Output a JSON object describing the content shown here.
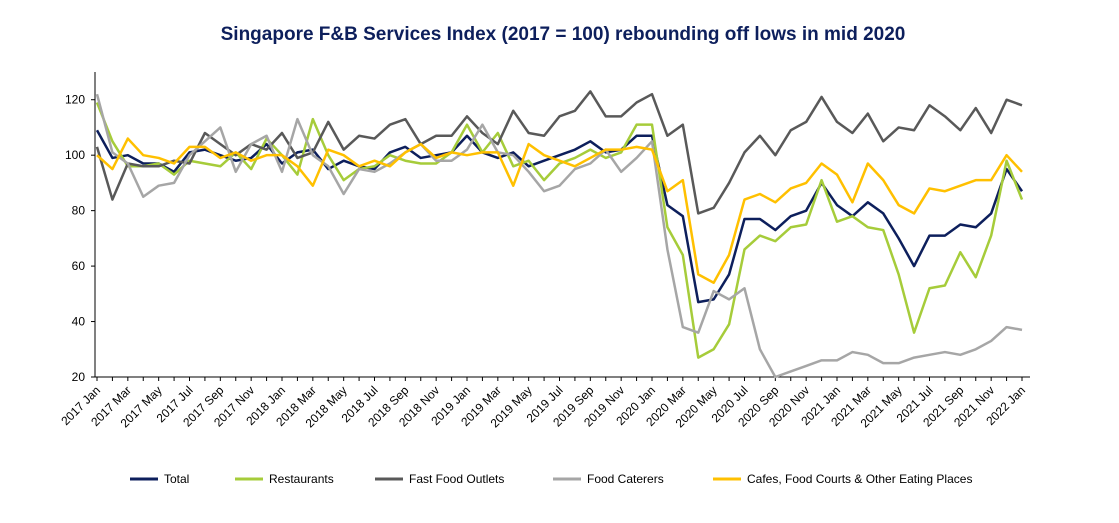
{
  "chart_data": {
    "type": "line",
    "title": "Singapore F&B Services Index (2017 = 100) rebounding off lows in mid 2020",
    "categories": [
      "2017 Jan",
      null,
      "2017 Mar",
      null,
      "2017 May",
      null,
      "2017 Jul",
      null,
      "2017 Sep",
      null,
      "2017 Nov",
      null,
      "2018 Jan",
      null,
      "2018 Mar",
      null,
      "2018 May",
      null,
      "2018 Jul",
      null,
      "2018 Sep",
      null,
      "2018 Nov",
      null,
      "2019 Jan",
      null,
      "2019 Mar",
      null,
      "2019 May",
      null,
      "2019 Jul",
      null,
      "2019 Sep",
      null,
      "2019 Nov",
      null,
      "2020 Jan",
      null,
      "2020 Mar",
      null,
      "2020 May",
      null,
      "2020 Jul",
      null,
      "2020 Sep",
      null,
      "2020 Nov",
      null,
      "2021 Jan",
      null,
      "2021 Mar",
      null,
      "2021 May",
      null,
      "2021 Jul",
      null,
      "2021 Sep",
      null,
      "2021 Nov",
      null,
      "2022 Jan"
    ],
    "series": [
      {
        "name": "Total",
        "color": "#0d1f5c",
        "values": [
          109,
          99,
          100,
          97,
          97,
          94,
          101,
          102,
          100,
          98,
          99,
          104,
          97,
          101,
          102,
          95,
          98,
          96,
          95,
          101,
          103,
          99,
          100,
          101,
          107,
          101,
          99,
          101,
          96,
          98,
          100,
          102,
          105,
          101,
          102,
          107,
          107,
          82,
          78,
          47,
          48,
          57,
          77,
          77,
          73,
          78,
          80,
          90,
          82,
          78,
          83,
          79,
          70,
          60,
          71,
          71,
          75,
          74,
          79,
          95,
          87
        ]
      },
      {
        "name": "Restaurants",
        "color": "#a6cc3a",
        "values": [
          119,
          105,
          96,
          96,
          97,
          93,
          98,
          97,
          96,
          101,
          95,
          106,
          100,
          93,
          113,
          100,
          91,
          95,
          96,
          100,
          98,
          97,
          97,
          101,
          111,
          101,
          108,
          96,
          98,
          91,
          97,
          99,
          102,
          99,
          101,
          111,
          111,
          74,
          64,
          27,
          30,
          39,
          66,
          71,
          69,
          74,
          75,
          91,
          76,
          78,
          74,
          73,
          57,
          36,
          52,
          53,
          65,
          56,
          71,
          98,
          84
        ]
      },
      {
        "name": "Fast Food Outlets",
        "color": "#595959",
        "values": [
          103,
          84,
          97,
          96,
          96,
          98,
          97,
          108,
          104,
          100,
          104,
          102,
          108,
          99,
          101,
          112,
          102,
          107,
          106,
          111,
          113,
          104,
          107,
          107,
          114,
          108,
          104,
          116,
          108,
          107,
          114,
          116,
          123,
          114,
          114,
          119,
          122,
          107,
          111,
          79,
          81,
          90,
          101,
          107,
          100,
          109,
          112,
          121,
          112,
          108,
          115,
          105,
          110,
          109,
          118,
          114,
          109,
          117,
          108,
          120,
          118
        ]
      },
      {
        "name": "Food Caterers",
        "color": "#a6a6a6",
        "values": [
          122,
          101,
          97,
          85,
          89,
          90,
          100,
          105,
          110,
          94,
          104,
          107,
          94,
          113,
          100,
          96,
          86,
          95,
          94,
          97,
          101,
          104,
          98,
          98,
          102,
          111,
          101,
          100,
          94,
          87,
          89,
          95,
          97,
          102,
          94,
          99,
          105,
          66,
          38,
          36,
          51,
          48,
          52,
          30,
          20,
          22,
          24,
          26,
          26,
          29,
          28,
          25,
          25,
          27,
          28,
          29,
          28,
          30,
          33,
          38,
          37
        ]
      },
      {
        "name": "Cafes, Food Courts & Other Eating Places",
        "color": "#ffc000",
        "values": [
          100,
          95,
          106,
          100,
          99,
          97,
          103,
          103,
          99,
          101,
          98,
          100,
          100,
          96,
          89,
          102,
          100,
          96,
          98,
          96,
          101,
          104,
          99,
          101,
          100,
          101,
          101,
          89,
          104,
          100,
          98,
          96,
          99,
          102,
          102,
          103,
          102,
          87,
          91,
          57,
          54,
          64,
          84,
          86,
          83,
          88,
          90,
          97,
          93,
          83,
          97,
          91,
          82,
          79,
          88,
          87,
          89,
          91,
          91,
          100,
          94
        ]
      }
    ],
    "ylim": [
      20,
      130
    ],
    "yticks": [
      20,
      40,
      60,
      80,
      100,
      120
    ]
  }
}
